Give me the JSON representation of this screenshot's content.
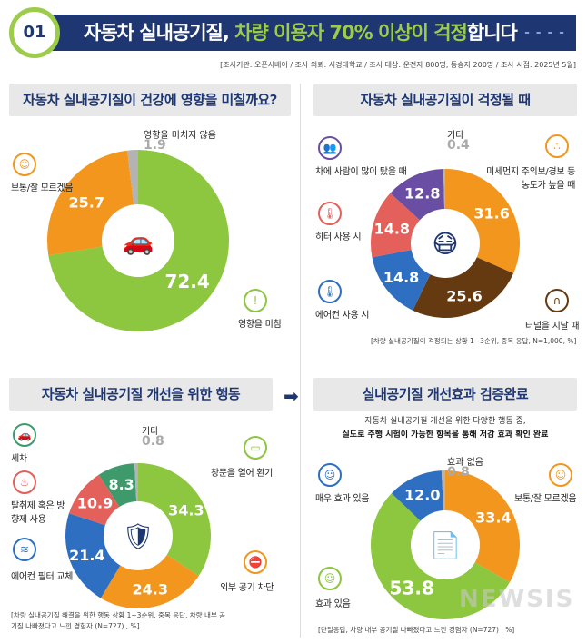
{
  "header": {
    "badge": "01",
    "title_pre": "자동차 실내공기질, ",
    "title_highlight": "차량 이용자 70% 이상이 걱정",
    "title_post": "합니다",
    "source": "[조사기관: 오픈서베이 / 조사 의뢰: 서경대학교 / 조사 대상: 운전자 800명, 동승자 200명 / 조사 시점: 2025년 5월]"
  },
  "colors": {
    "navy": "#1e3772",
    "green": "#8dc63f",
    "orange": "#f2961e",
    "grey": "#b3b3b3",
    "purple": "#6a4ea3",
    "red": "#e4605a",
    "blue": "#2e6fc2",
    "brown": "#653a10",
    "darkgreen": "#3e9a6b"
  },
  "chart_data": [
    {
      "type": "pie",
      "title": "자동차 실내공기질이 건강에 영향을 미칠까요?",
      "center_icon": "car-plus-icon",
      "categories": [
        "영향을 미침",
        "보통/잘 모르겠음",
        "영향을 미치지 않음"
      ],
      "values": [
        72.4,
        25.7,
        1.9
      ],
      "colors": [
        "#8dc63f",
        "#f2961e",
        "#b3b3b3"
      ],
      "labels": [
        "72.4",
        "25.7",
        "1.9"
      ],
      "note": ""
    },
    {
      "type": "pie",
      "title": "자동차 실내공기질이 걱정될 때",
      "center_icon": "masked-face-icon",
      "categories": [
        "미세먼지 주의보/경보 등 농도가 높을 때",
        "터널을 지날 때",
        "에어컨 사용 시",
        "히터 사용 시",
        "차에 사람이 많이 탔을 때",
        "기타"
      ],
      "values": [
        31.6,
        25.6,
        14.8,
        14.8,
        12.8,
        0.4
      ],
      "colors": [
        "#f2961e",
        "#653a10",
        "#2e6fc2",
        "#e4605a",
        "#6a4ea3",
        "#b3b3b3"
      ],
      "labels": [
        "31.6",
        "25.6",
        "14.8",
        "14.8",
        "12.8",
        "0.4"
      ],
      "note": "[차량 실내공기질이 걱정되는 상황 1~3순위, 중복 응답, N=1,000, %]"
    },
    {
      "type": "pie",
      "title": "자동차 실내공기질 개선을 위한 행동",
      "center_icon": "car-shield-icon",
      "categories": [
        "창문을 열어 환기",
        "외부 공기 차단",
        "에어컨 필터 교체",
        "탈취제 혹은 방향제 사용",
        "세차",
        "기타"
      ],
      "values": [
        34.3,
        24.3,
        21.4,
        10.9,
        8.3,
        0.8
      ],
      "colors": [
        "#8dc63f",
        "#f2961e",
        "#2e6fc2",
        "#e4605a",
        "#3e9a6b",
        "#b3b3b3"
      ],
      "labels": [
        "34.3",
        "24.3",
        "21.4",
        "10.9",
        "8.3",
        "0.8"
      ],
      "note": "[차량 실내공기질 해결을 위한 행동 상황 1~3순위, 중복 응답, 차량 내부 공기질 나빠졌다고 느낀 경험자 (N=727) , %]"
    },
    {
      "type": "pie",
      "title": "실내공기질 개선효과 검증완료",
      "center_icon": "document-check-icon",
      "categories": [
        "보통/잘 모르겠음",
        "효과 있음",
        "매우 효과 있음",
        "효과 없음"
      ],
      "values": [
        33.4,
        53.8,
        12.0,
        0.8
      ],
      "colors": [
        "#f2961e",
        "#8dc63f",
        "#2e6fc2",
        "#b3b3b3"
      ],
      "labels": [
        "33.4",
        "53.8",
        "12.0",
        "0.8"
      ],
      "note": "[단일응답, 차량 내부 공기질 나빠졌다고 느낀 경험자 (N=727) , %]"
    }
  ],
  "panel4_sub": [
    "자동차 실내공기질 개선을 위한 다양한 행동 중,",
    "실도로 주행 시험이 가능한 항목을 통해 저감 효과 확인 완료"
  ],
  "watermark": "뉴시스"
}
